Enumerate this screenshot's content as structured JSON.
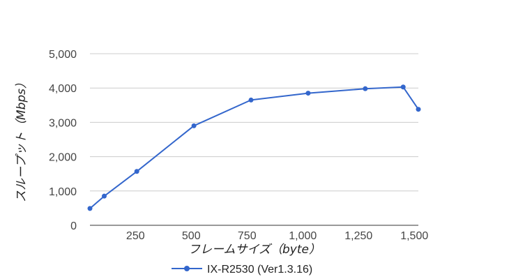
{
  "chart_data": {
    "type": "line",
    "title": "",
    "xlabel": "フレームサイズ（byte）",
    "ylabel": "スループット（Mbps）",
    "xlim": [
      46,
      1518
    ],
    "ylim": [
      0,
      5000
    ],
    "xticks": [
      250,
      500,
      750,
      1000,
      1250,
      1500
    ],
    "xtick_labels": [
      "250",
      "500",
      "750",
      "1,000",
      "1,250",
      "1,500"
    ],
    "yticks": [
      0,
      1000,
      2000,
      3000,
      4000,
      5000
    ],
    "ytick_labels": [
      "0",
      "1,000",
      "2,000",
      "3,000",
      "4,000",
      "5,000"
    ],
    "grid": true,
    "legend_position": "bottom",
    "series": [
      {
        "name": "IX-R2530 (Ver1.3.16)",
        "color": "#3366cc",
        "x": [
          46,
          110,
          256,
          512,
          768,
          1024,
          1280,
          1450,
          1518
        ],
        "y": [
          490,
          850,
          1570,
          2900,
          3650,
          3850,
          3980,
          4030,
          3380
        ]
      }
    ]
  }
}
